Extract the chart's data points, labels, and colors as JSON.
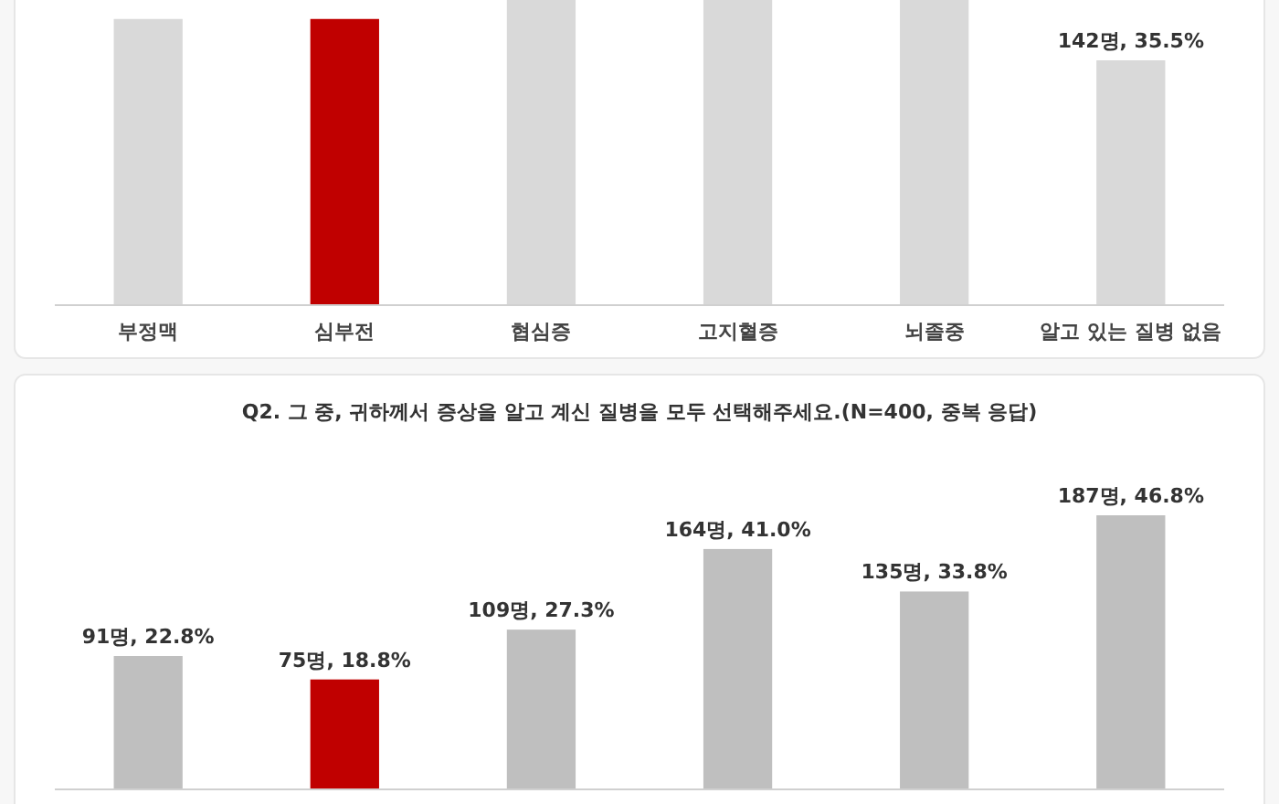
{
  "chart_data": [
    {
      "type": "bar",
      "categories": [
        "부정맥",
        "심부전",
        "협심증",
        "고지혈증",
        "뇌졸중",
        "알고 있는 질병 없음"
      ],
      "values": [
        166,
        166,
        177,
        177,
        177,
        142
      ],
      "colors": [
        "#d9d9d9",
        "#c00000",
        "#d9d9d9",
        "#d9d9d9",
        "#d9d9d9",
        "#d9d9d9"
      ],
      "value_labels": [
        null,
        null,
        null,
        null,
        null,
        "142명, 35.5%"
      ],
      "tick_labels": "x"
    },
    {
      "type": "bar",
      "title": "Q2. 그 중, 귀하께서 증상을 알고 계신 질병을 모두 선택해주세요.(N=400, 중복 응답)",
      "categories": [
        null,
        null,
        null,
        null,
        null,
        null
      ],
      "values": [
        91,
        75,
        109,
        164,
        135,
        187
      ],
      "colors": [
        "#bfbfbf",
        "#c00000",
        "#bfbfbf",
        "#bfbfbf",
        "#bfbfbf",
        "#bfbfbf"
      ],
      "value_labels": [
        "91명, 22.8%",
        "75명, 18.8%",
        "109명, 27.3%",
        "164명, 41.0%",
        "135명, 33.8%",
        "187명, 46.8%"
      ],
      "tick_labels": false
    }
  ]
}
